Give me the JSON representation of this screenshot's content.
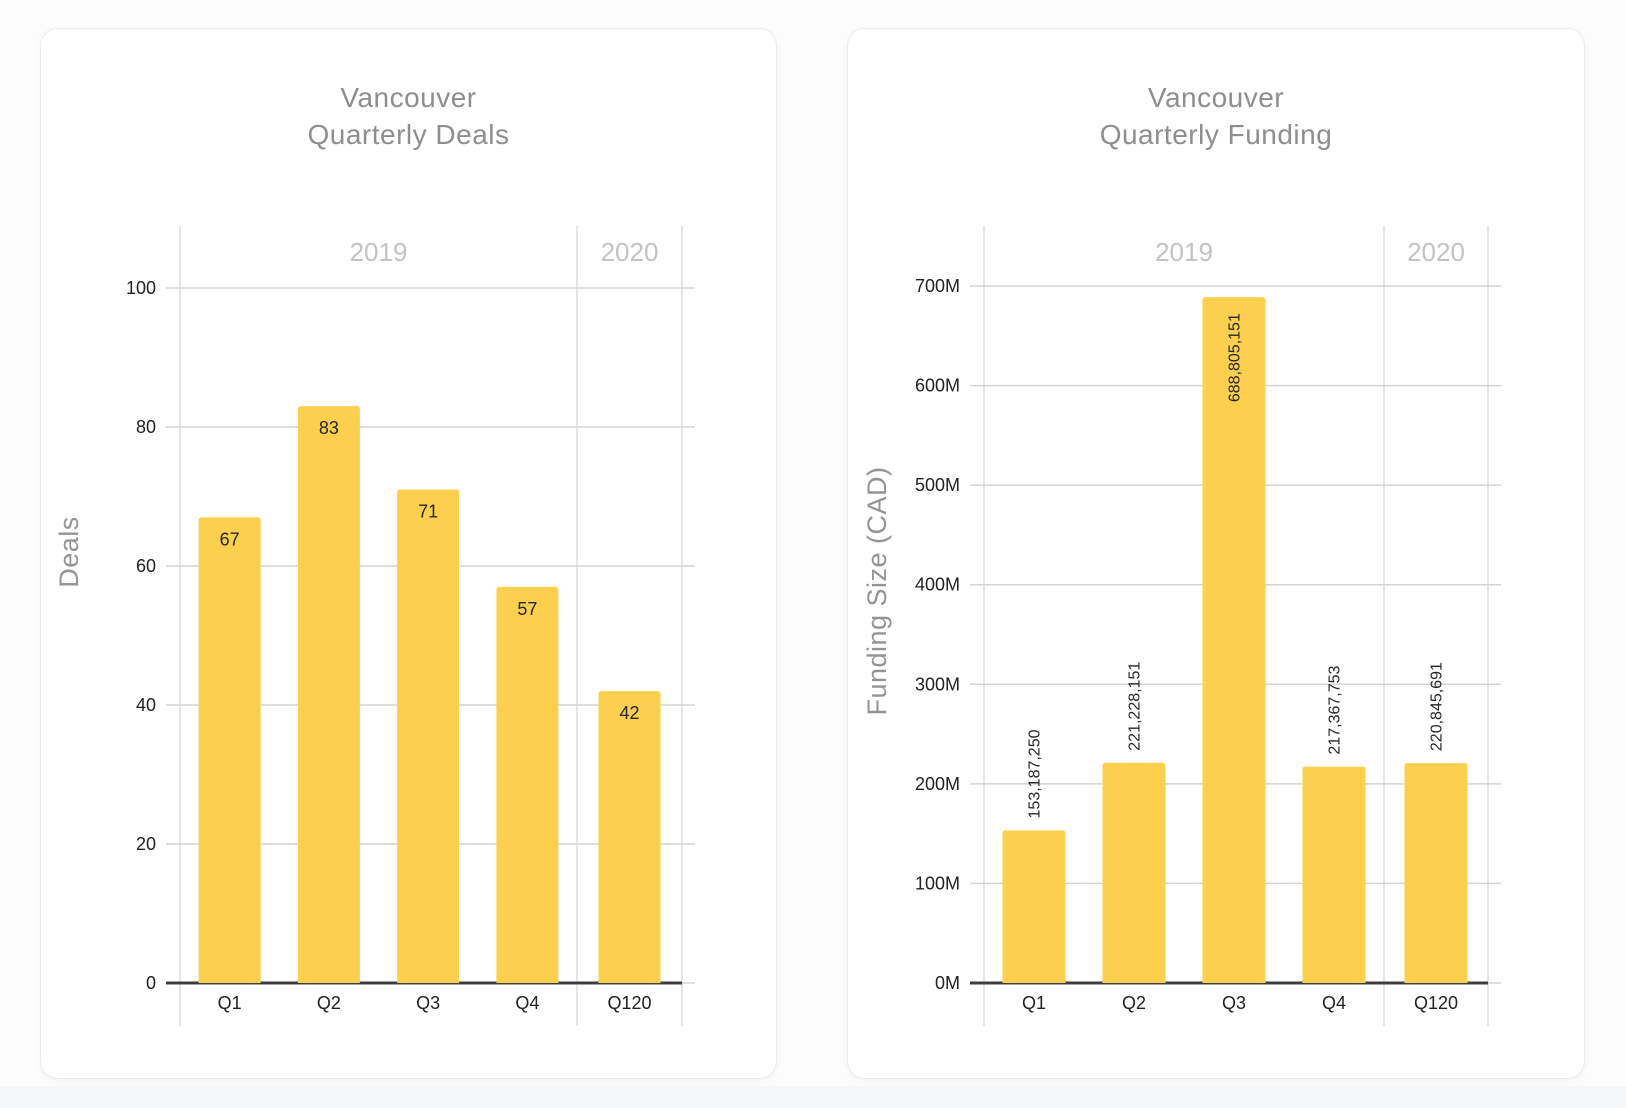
{
  "colors": {
    "page_bg": "#fcfcfc",
    "strip_bg": "#f5f6f7",
    "card_bg": "#ffffff",
    "bar": "#FCD04E",
    "gridline": "#d4d4d4",
    "vertical_line": "#dedede",
    "baseline": "#3d3d3d",
    "tick_text": "#222222",
    "value_text": "#262626",
    "title_text": "#8e8e8e",
    "year_text": "#c3c3c3",
    "axis_title_text": "#949494"
  },
  "chart_data": [
    {
      "type": "bar",
      "title": "Vancouver Quarterly Deals",
      "title_lines": [
        "Vancouver",
        "Quarterly Deals"
      ],
      "categories": [
        "Q1",
        "Q2",
        "Q3",
        "Q4",
        "Q120"
      ],
      "values": [
        67,
        83,
        71,
        57,
        42
      ],
      "value_labels": [
        "67",
        "83",
        "71",
        "57",
        "42"
      ],
      "value_label_rotation": 0,
      "xlabel": "",
      "ylabel": "Deals",
      "ylim": [
        0,
        100
      ],
      "yticks": [
        {
          "value": 0,
          "label": "0"
        },
        {
          "value": 20,
          "label": "20"
        },
        {
          "value": 40,
          "label": "40"
        },
        {
          "value": 60,
          "label": "60"
        },
        {
          "value": 80,
          "label": "80"
        },
        {
          "value": 100,
          "label": "100"
        }
      ],
      "year_groups": [
        {
          "label": "2019",
          "span": 4
        },
        {
          "label": "2020",
          "span": 1
        }
      ],
      "grid": true,
      "legend": "none"
    },
    {
      "type": "bar",
      "title": "Vancouver Quarterly Funding",
      "title_lines": [
        "Vancouver",
        "Quarterly Funding"
      ],
      "categories": [
        "Q1",
        "Q2",
        "Q3",
        "Q4",
        "Q120"
      ],
      "values": [
        153187250,
        221228151,
        688805151,
        217367753,
        220845691
      ],
      "value_labels": [
        "153,187,250",
        "221,228,151",
        "688,805,151",
        "217,367,753",
        "220,845,691"
      ],
      "value_label_rotation": -90,
      "xlabel": "",
      "ylabel": "Funding Size (CAD)",
      "ylim": [
        0,
        700000000
      ],
      "yticks": [
        {
          "value": 0,
          "label": "0M"
        },
        {
          "value": 100000000,
          "label": "100M"
        },
        {
          "value": 200000000,
          "label": "200M"
        },
        {
          "value": 300000000,
          "label": "300M"
        },
        {
          "value": 400000000,
          "label": "400M"
        },
        {
          "value": 500000000,
          "label": "500M"
        },
        {
          "value": 600000000,
          "label": "600M"
        },
        {
          "value": 700000000,
          "label": "700M"
        }
      ],
      "year_groups": [
        {
          "label": "2019",
          "span": 4
        },
        {
          "label": "2020",
          "span": 1
        }
      ],
      "grid": true,
      "legend": "none"
    }
  ]
}
